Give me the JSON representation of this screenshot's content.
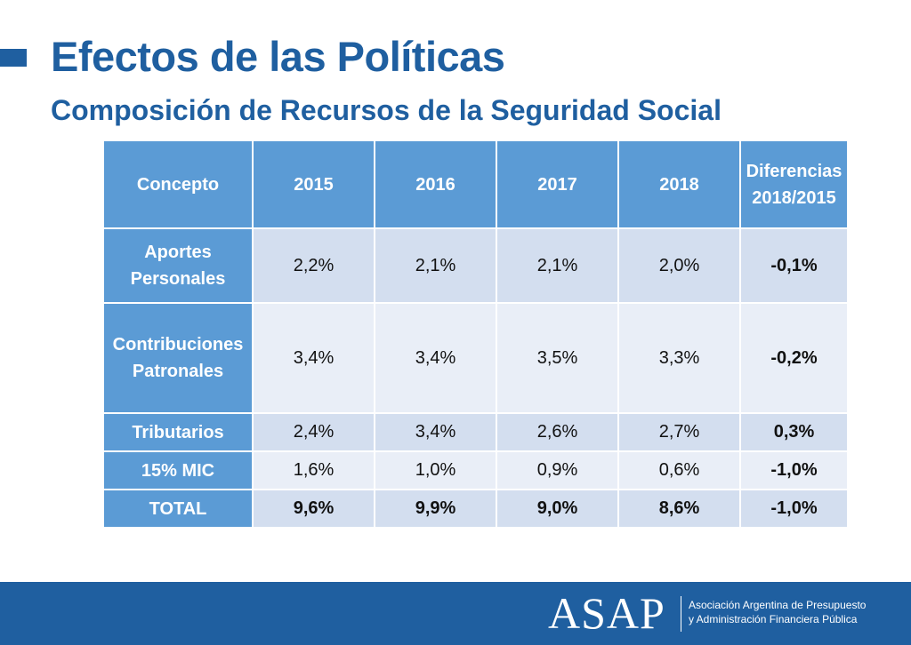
{
  "header": {
    "title": "Efectos de las Políticas",
    "subtitle": "Composición de Recursos de la Seguridad Social"
  },
  "table": {
    "columns": [
      "Concepto",
      "2015",
      "2016",
      "2017",
      "2018",
      "Diferencias 2018/2015"
    ],
    "rows": [
      {
        "label": "Aportes Personales",
        "values": [
          "2,2%",
          "2,1%",
          "2,1%",
          "2,0%",
          "-0,1%"
        ]
      },
      {
        "label": "Contribuciones Patronales",
        "values": [
          "3,4%",
          "3,4%",
          "3,5%",
          "3,3%",
          "-0,2%"
        ]
      },
      {
        "label": "Tributarios",
        "values": [
          "2,4%",
          "3,4%",
          "2,6%",
          "2,7%",
          "0,3%"
        ]
      },
      {
        "label": "15% MIC",
        "values": [
          "1,6%",
          "1,0%",
          "0,9%",
          "0,6%",
          "-1,0%"
        ]
      },
      {
        "label": "TOTAL",
        "values": [
          "9,6%",
          "9,9%",
          "9,0%",
          "8,6%",
          "-1,0%"
        ]
      }
    ]
  },
  "footer": {
    "logo": "ASAP",
    "org_line1": "Asociación Argentina de Presupuesto",
    "org_line2": "y Administración Financiera Pública"
  },
  "colors": {
    "brand_blue": "#1f5fa0",
    "header_blue": "#5b9bd5",
    "row_light": "#d3deef",
    "row_lighter": "#e9eef7"
  }
}
